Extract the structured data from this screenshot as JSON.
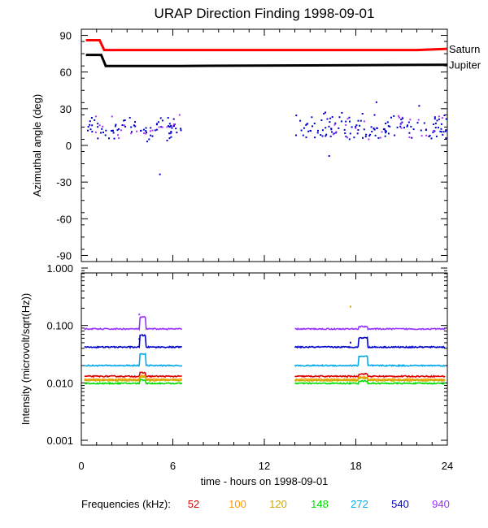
{
  "chart_data": [
    {
      "type": "scatter",
      "title": "URAP Direction Finding  1998-09-01",
      "ylabel": "Azimuthal angle (deg)",
      "ylim": [
        -95,
        95
      ],
      "yticks": [
        "90",
        "60",
        "30",
        "0",
        "-30",
        "-60",
        "-90"
      ],
      "xlim": [
        0,
        24
      ],
      "series": [
        {
          "name": "Saturn",
          "color": "#ff0000",
          "x": [
            0.3,
            1.2,
            1.5,
            22.0,
            24.0
          ],
          "y": [
            86,
            86,
            78,
            78,
            79
          ]
        },
        {
          "name": "Jupiter",
          "color": "#000000",
          "x": [
            0.3,
            1.3,
            1.6,
            6.5,
            24.0
          ],
          "y": [
            74,
            74,
            65,
            65,
            66
          ]
        }
      ],
      "direction_points": {
        "color": "#0000cc",
        "segments": [
          {
            "x_range": [
              0.3,
              6.5
            ],
            "y_center": 15,
            "y_spread": 12
          },
          {
            "x_range": [
              14.0,
              24.0
            ],
            "y_center": 16,
            "y_spread": 14
          }
        ]
      }
    },
    {
      "type": "line",
      "ylabel": "Intensity (microvolt/sqrt(Hz))",
      "yscale": "log",
      "ylim": [
        0.001,
        1.0
      ],
      "yticks": [
        "1.000",
        "0.100",
        "0.010",
        "0.001"
      ],
      "xlim": [
        0,
        24
      ],
      "xticks": [
        "0",
        "6",
        "12",
        "18",
        "24"
      ],
      "xlabel": "time - hours on 1998-09-01",
      "data_gap": [
        6.6,
        14.0
      ],
      "series": [
        {
          "name": "52",
          "color": "#dd0000",
          "base": 0.013
        },
        {
          "name": "100",
          "color": "#ff9900",
          "base": 0.0115
        },
        {
          "name": "120",
          "color": "#ccaa00",
          "base": 0.011
        },
        {
          "name": "148",
          "color": "#00dd00",
          "base": 0.0098
        },
        {
          "name": "272",
          "color": "#00aaee",
          "base": 0.02
        },
        {
          "name": "540",
          "color": "#0000cc",
          "base": 0.042
        },
        {
          "name": "940",
          "color": "#9933ff",
          "base": 0.087
        }
      ]
    }
  ],
  "legend_title": "Frequencies (kHz):"
}
